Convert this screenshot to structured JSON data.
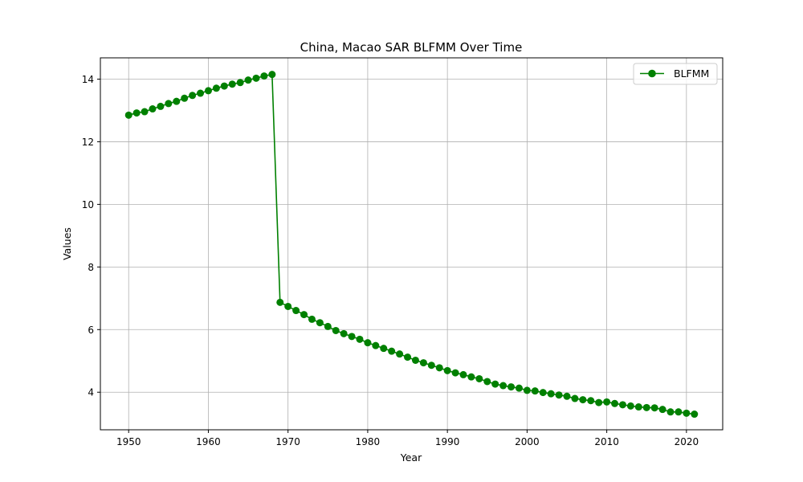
{
  "chart_data": {
    "type": "line",
    "title": "China, Macao SAR BLFMM Over Time",
    "xlabel": "Year",
    "ylabel": "Values",
    "xlim": [
      1946.45,
      2024.55
    ],
    "ylim": [
      2.8,
      14.68
    ],
    "xticks": [
      1950,
      1960,
      1970,
      1980,
      1990,
      2000,
      2010,
      2020
    ],
    "yticks": [
      4,
      6,
      8,
      10,
      12,
      14
    ],
    "grid": true,
    "legend_position": "top-right",
    "series": [
      {
        "name": "BLFMM",
        "color": "#008000",
        "marker": "circle",
        "x": [
          1950,
          1951,
          1952,
          1953,
          1954,
          1955,
          1956,
          1957,
          1958,
          1959,
          1960,
          1961,
          1962,
          1963,
          1964,
          1965,
          1966,
          1967,
          1968,
          1969,
          1970,
          1971,
          1972,
          1973,
          1974,
          1975,
          1976,
          1977,
          1978,
          1979,
          1980,
          1981,
          1982,
          1983,
          1984,
          1985,
          1986,
          1987,
          1988,
          1989,
          1990,
          1991,
          1992,
          1993,
          1994,
          1995,
          1996,
          1997,
          1998,
          1999,
          2000,
          2001,
          2002,
          2003,
          2004,
          2005,
          2006,
          2007,
          2008,
          2009,
          2010,
          2011,
          2012,
          2013,
          2014,
          2015,
          2016,
          2017,
          2018,
          2019,
          2020,
          2021
        ],
        "values": [
          12.85,
          12.92,
          12.96,
          13.05,
          13.13,
          13.22,
          13.29,
          13.39,
          13.48,
          13.55,
          13.63,
          13.71,
          13.78,
          13.84,
          13.89,
          13.97,
          14.03,
          14.1,
          14.15,
          6.87,
          6.74,
          6.61,
          6.48,
          6.33,
          6.22,
          6.1,
          5.97,
          5.87,
          5.78,
          5.69,
          5.58,
          5.49,
          5.4,
          5.31,
          5.22,
          5.12,
          5.02,
          4.94,
          4.86,
          4.78,
          4.69,
          4.62,
          4.56,
          4.49,
          4.43,
          4.34,
          4.26,
          4.21,
          4.17,
          4.13,
          4.06,
          4.04,
          3.99,
          3.95,
          3.91,
          3.87,
          3.8,
          3.76,
          3.73,
          3.67,
          3.69,
          3.64,
          3.6,
          3.56,
          3.53,
          3.51,
          3.5,
          3.45,
          3.37,
          3.37,
          3.33,
          3.3
        ]
      }
    ]
  }
}
